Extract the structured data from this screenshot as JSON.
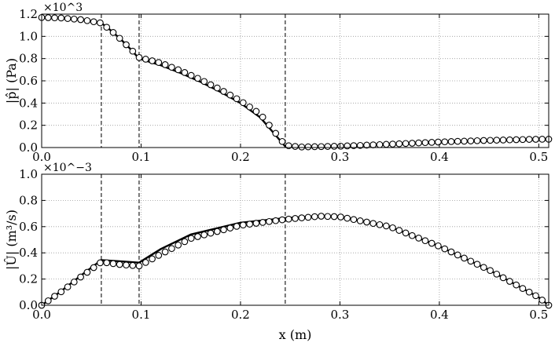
{
  "chart_data": [
    {
      "type": "line",
      "xlabel": "x (m)",
      "ylabel": "|p̂| (Pa)",
      "sci_multiplier": "×10^3",
      "xlim": [
        0.0,
        0.51
      ],
      "ylim": [
        0.0,
        1.2
      ],
      "x_ticks": [
        "0.0",
        "0.1",
        "0.2",
        "0.3",
        "0.4",
        "0.5"
      ],
      "y_ticks": [
        "0.0",
        "0.2",
        "0.4",
        "0.6",
        "0.8",
        "1.0",
        "1.2"
      ],
      "grid": true,
      "vlines": [
        0.06,
        0.098,
        0.245
      ],
      "series": [
        {
          "style": "solid-line",
          "x": [
            0.0,
            0.02,
            0.04,
            0.06,
            0.07,
            0.08,
            0.09,
            0.098,
            0.12,
            0.14,
            0.16,
            0.18,
            0.2,
            0.22,
            0.245,
            0.26,
            0.3,
            0.35,
            0.4,
            0.45,
            0.5,
            0.51
          ],
          "y": [
            1.17,
            1.165,
            1.15,
            1.12,
            1.05,
            0.97,
            0.88,
            0.8,
            0.74,
            0.67,
            0.59,
            0.5,
            0.4,
            0.27,
            0.01,
            0.005,
            0.01,
            0.025,
            0.045,
            0.06,
            0.07,
            0.07
          ]
        },
        {
          "style": "open-circles",
          "x": [
            0.0,
            0.02,
            0.04,
            0.06,
            0.07,
            0.08,
            0.09,
            0.098,
            0.12,
            0.14,
            0.16,
            0.18,
            0.2,
            0.22,
            0.245,
            0.26,
            0.3,
            0.35,
            0.4,
            0.45,
            0.5,
            0.51
          ],
          "y": [
            1.17,
            1.165,
            1.15,
            1.12,
            1.05,
            0.97,
            0.88,
            0.81,
            0.76,
            0.69,
            0.61,
            0.52,
            0.42,
            0.3,
            0.02,
            0.005,
            0.012,
            0.03,
            0.05,
            0.065,
            0.075,
            0.075
          ]
        }
      ]
    },
    {
      "type": "line",
      "xlabel": "x (m)",
      "ylabel": "|Û| (m³/s)",
      "sci_multiplier": "×10^−3",
      "xlim": [
        0.0,
        0.51
      ],
      "ylim": [
        0.0,
        1.0
      ],
      "x_ticks": [
        "0.0",
        "0.1",
        "0.2",
        "0.3",
        "0.4",
        "0.5"
      ],
      "y_ticks": [
        "0.0",
        "0.2",
        "0.4",
        "0.6",
        "0.8",
        "1.0"
      ],
      "grid": true,
      "vlines": [
        0.06,
        0.098,
        0.245
      ],
      "series": [
        {
          "style": "solid-line",
          "x": [
            0.0,
            0.02,
            0.04,
            0.06,
            0.08,
            0.098,
            0.12,
            0.15,
            0.2,
            0.245,
            0.28,
            0.3,
            0.35,
            0.4,
            0.45,
            0.5,
            0.51
          ],
          "y": [
            0.0,
            0.11,
            0.23,
            0.345,
            0.335,
            0.325,
            0.43,
            0.54,
            0.63,
            0.665,
            0.68,
            0.675,
            0.6,
            0.45,
            0.27,
            0.06,
            0.0
          ]
        },
        {
          "style": "open-circles",
          "x": [
            0.0,
            0.02,
            0.04,
            0.06,
            0.08,
            0.098,
            0.12,
            0.15,
            0.2,
            0.245,
            0.28,
            0.3,
            0.35,
            0.4,
            0.45,
            0.5,
            0.51
          ],
          "y": [
            0.0,
            0.105,
            0.22,
            0.33,
            0.31,
            0.3,
            0.39,
            0.51,
            0.61,
            0.655,
            0.68,
            0.675,
            0.6,
            0.45,
            0.27,
            0.06,
            0.0
          ]
        }
      ]
    }
  ]
}
